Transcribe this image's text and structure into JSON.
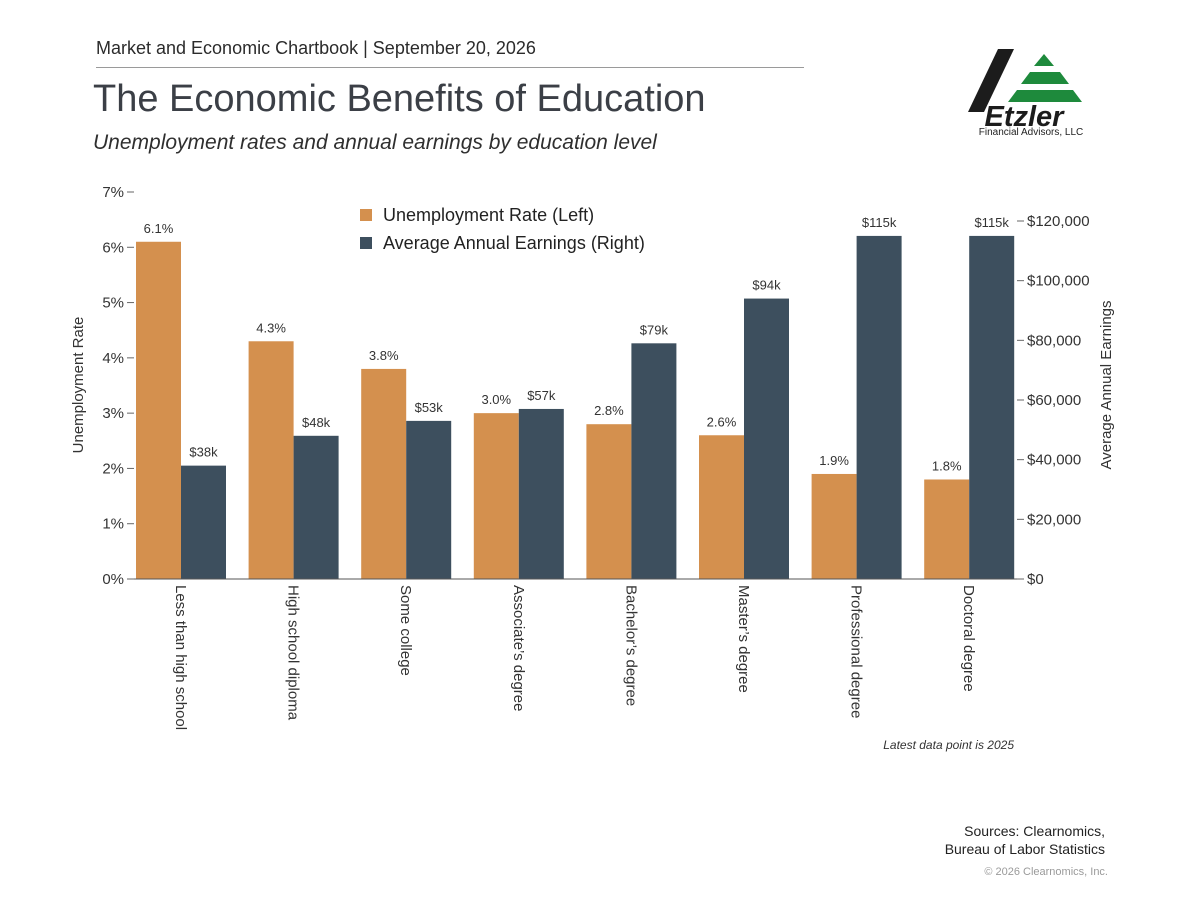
{
  "header": {
    "chartbook_line": "Market and Economic Chartbook | September 20, 2026",
    "title": "The Economic Benefits of Education",
    "subtitle": "Unemployment rates and annual earnings by education level"
  },
  "logo": {
    "name": "Etzler",
    "subtitle": "Financial Advisors, LLC",
    "colors": {
      "dark": "#1c1c1c",
      "green": "#1e8a3c"
    }
  },
  "chart_data": {
    "type": "bar",
    "categories": [
      "Less than high school",
      "High school diploma",
      "Some college",
      "Associate’s degree",
      "Bachelor’s degree",
      "Master’s degree",
      "Professional degree",
      "Doctoral degree"
    ],
    "series": [
      {
        "name": "Unemployment Rate (Left)",
        "axis": "left",
        "color": "#d4904e",
        "values": [
          6.1,
          4.3,
          3.8,
          3.0,
          2.8,
          2.6,
          1.9,
          1.8
        ],
        "labels": [
          "6.1%",
          "4.3%",
          "3.8%",
          "3.0%",
          "2.8%",
          "2.6%",
          "1.9%",
          "1.8%"
        ]
      },
      {
        "name": "Average Annual Earnings (Right)",
        "axis": "right",
        "color": "#3d4f5e",
        "values": [
          38000,
          48000,
          53000,
          57000,
          79000,
          94000,
          115000,
          115000
        ],
        "labels": [
          "$38k",
          "$48k",
          "$53k",
          "$57k",
          "$79k",
          "$94k",
          "$115k",
          "$115k"
        ]
      }
    ],
    "ylabel_left": "Unemployment Rate",
    "ylabel_right": "Average Annual Earnings",
    "ylim_left": [
      0,
      7
    ],
    "ylim_right": [
      0,
      130000
    ],
    "left_ticks": [
      0,
      1,
      2,
      3,
      4,
      5,
      6,
      7
    ],
    "left_tick_labels": [
      "0%",
      "1%",
      "2%",
      "3%",
      "4%",
      "5%",
      "6%",
      "7%"
    ],
    "right_ticks": [
      0,
      20000,
      40000,
      60000,
      80000,
      100000,
      120000
    ],
    "right_tick_labels": [
      "$0",
      "$20,000",
      "$40,000",
      "$60,000",
      "$80,000",
      "$100,000",
      "$120,000"
    ],
    "legend_placement": "top-center",
    "grid": false
  },
  "footnote": "Latest data point is 2025",
  "sources": {
    "line1": "Sources: Clearnomics,",
    "line2": "Bureau of Labor Statistics"
  },
  "copyright": "© 2026 Clearnomics, Inc."
}
